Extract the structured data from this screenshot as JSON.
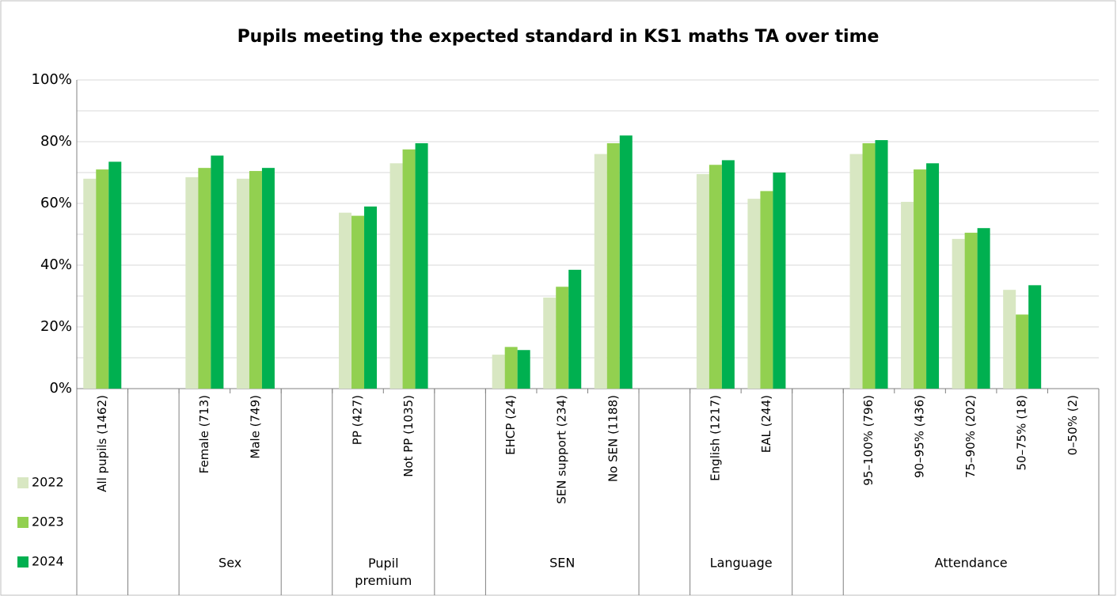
{
  "chart_data": {
    "type": "bar",
    "title": "Pupils meeting the expected standard in KS1 maths TA over time",
    "categories": [
      "All pupils (1462)",
      null,
      "Female (713)",
      "Male (749)",
      null,
      "PP (427)",
      "Not PP (1035)",
      null,
      "EHCP (24)",
      "SEN support (234)",
      "No SEN (1188)",
      null,
      "English (1217)",
      "EAL (244)",
      null,
      "95–100% (796)",
      "90–95% (436)",
      "75–90% (202)",
      "50–75% (18)",
      "0–50% (2)"
    ],
    "group_labels": [
      null,
      "Sex",
      "Pupil premium",
      "SEN",
      "Language",
      "Attendance"
    ],
    "series": [
      {
        "name": "2022",
        "color": "#d8e7c2",
        "values": [
          68,
          null,
          68.5,
          68,
          null,
          57,
          73,
          null,
          11,
          29.5,
          76,
          null,
          69.5,
          61.5,
          null,
          76,
          60.5,
          48.5,
          32,
          null
        ]
      },
      {
        "name": "2023",
        "color": "#92d050",
        "values": [
          71,
          null,
          71.5,
          70.5,
          null,
          56,
          77.5,
          null,
          13.5,
          33,
          79.5,
          null,
          72.5,
          64,
          null,
          79.5,
          71,
          50.5,
          24,
          null
        ]
      },
      {
        "name": "2024",
        "color": "#00b050",
        "values": [
          73.5,
          null,
          75.5,
          71.5,
          null,
          59,
          79.5,
          null,
          12.5,
          38.5,
          82,
          null,
          74,
          70,
          null,
          80.5,
          73,
          52,
          33.5,
          null
        ]
      }
    ],
    "ylim": [
      0,
      100
    ],
    "yticks": [
      {
        "value": 0,
        "label": "0%"
      },
      {
        "value": 20,
        "label": "20%"
      },
      {
        "value": 40,
        "label": "40%"
      },
      {
        "value": 60,
        "label": "60%"
      },
      {
        "value": 80,
        "label": "80%"
      },
      {
        "value": 100,
        "label": "100%"
      }
    ],
    "minor_yticks": [
      10,
      30,
      50,
      70,
      90
    ],
    "grid": true,
    "legend": "left"
  }
}
